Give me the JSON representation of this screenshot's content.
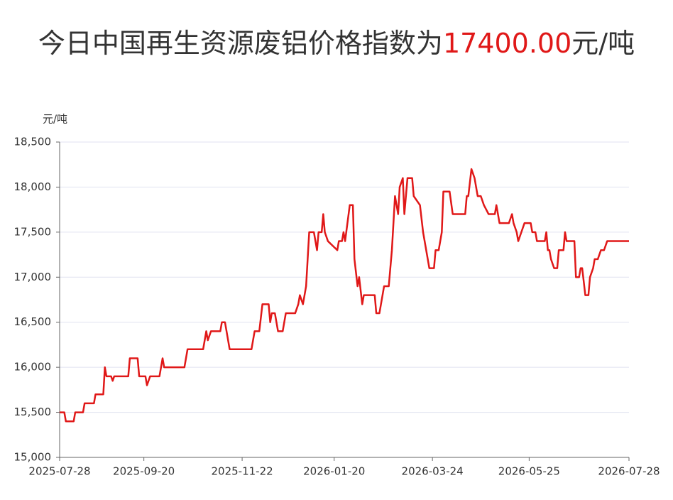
{
  "chart_data": {
    "type": "line",
    "title": {
      "prefix": "今日中国再生资源废铝价格指数为",
      "value": "17400.00",
      "suffix": "元/吨"
    },
    "y_axis_label": "元/吨",
    "color": "#e01818",
    "grid": true,
    "xlim": [
      "2025-07-28",
      "2026-07-28"
    ],
    "xticks": [
      "2025-07-28",
      "2025-09-20",
      "2025-11-22",
      "2026-01-20",
      "2026-03-24",
      "2026-05-25",
      "2026-07-28"
    ],
    "ylim": [
      15000,
      18500
    ],
    "yticks": [
      {
        "value": 15000,
        "label": "15,000"
      },
      {
        "value": 15500,
        "label": "15,500"
      },
      {
        "value": 16000,
        "label": "16,000"
      },
      {
        "value": 16500,
        "label": "16,500"
      },
      {
        "value": 17000,
        "label": "17,000"
      },
      {
        "value": 17500,
        "label": "17,500"
      },
      {
        "value": 18000,
        "label": "18,000"
      },
      {
        "value": 18500,
        "label": "18,500"
      }
    ],
    "x": [
      "2025-07-28",
      "2025-07-31",
      "2025-08-01",
      "2025-08-06",
      "2025-08-07",
      "2025-08-12",
      "2025-08-13",
      "2025-08-19",
      "2025-08-20",
      "2025-08-25",
      "2025-08-26",
      "2025-08-27",
      "2025-08-30",
      "2025-08-31",
      "2025-09-01",
      "2025-09-10",
      "2025-09-11",
      "2025-09-16",
      "2025-09-17",
      "2025-09-21",
      "2025-09-22",
      "2025-09-24",
      "2025-09-30",
      "2025-10-02",
      "2025-10-03",
      "2025-10-16",
      "2025-10-18",
      "2025-10-28",
      "2025-10-30",
      "2025-10-31",
      "2025-11-02",
      "2025-11-08",
      "2025-11-09",
      "2025-11-11",
      "2025-11-14",
      "2025-11-28",
      "2025-11-30",
      "2025-12-03",
      "2025-12-05",
      "2025-12-09",
      "2025-12-10",
      "2025-12-11",
      "2025-12-13",
      "2025-12-15",
      "2025-12-18",
      "2025-12-19",
      "2025-12-20",
      "2025-12-26",
      "2025-12-28",
      "2025-12-29",
      "2025-12-31",
      "2026-01-02",
      "2026-01-04",
      "2026-01-07",
      "2026-01-09",
      "2026-01-10",
      "2026-01-12",
      "2026-01-13",
      "2026-01-14",
      "2026-01-16",
      "2026-01-22",
      "2026-01-23",
      "2026-01-25",
      "2026-01-26",
      "2026-01-27",
      "2026-01-30",
      "2026-02-01",
      "2026-02-02",
      "2026-02-04",
      "2026-02-05",
      "2026-02-07",
      "2026-02-08",
      "2026-02-15",
      "2026-02-16",
      "2026-02-18",
      "2026-02-21",
      "2026-02-24",
      "2026-02-26",
      "2026-02-28",
      "2026-03-02",
      "2026-03-03",
      "2026-03-05",
      "2026-03-06",
      "2026-03-08",
      "2026-03-11",
      "2026-03-12",
      "2026-03-16",
      "2026-03-18",
      "2026-03-20",
      "2026-03-22",
      "2026-03-25",
      "2026-03-26",
      "2026-03-28",
      "2026-03-30",
      "2026-03-31",
      "2026-04-04",
      "2026-04-06",
      "2026-04-14",
      "2026-04-15",
      "2026-04-16",
      "2026-04-18",
      "2026-04-20",
      "2026-04-22",
      "2026-04-24",
      "2026-04-26",
      "2026-04-29",
      "2026-05-03",
      "2026-05-04",
      "2026-05-06",
      "2026-05-12",
      "2026-05-14",
      "2026-05-15",
      "2026-05-17",
      "2026-05-18",
      "2026-05-20",
      "2026-05-22",
      "2026-05-26",
      "2026-05-27",
      "2026-05-29",
      "2026-05-30",
      "2026-06-04",
      "2026-06-05",
      "2026-06-06",
      "2026-06-07",
      "2026-06-08",
      "2026-06-10",
      "2026-06-12",
      "2026-06-13",
      "2026-06-16",
      "2026-06-17",
      "2026-06-18",
      "2026-06-23",
      "2026-06-24",
      "2026-06-26",
      "2026-06-27",
      "2026-06-28",
      "2026-06-30",
      "2026-07-02",
      "2026-07-03",
      "2026-07-05",
      "2026-07-06",
      "2026-07-08",
      "2026-07-10",
      "2026-07-12",
      "2026-07-14",
      "2026-07-28"
    ],
    "values": [
      15500,
      15500,
      15400,
      15400,
      15500,
      15500,
      15600,
      15600,
      15700,
      15700,
      16000,
      15900,
      15900,
      15850,
      15900,
      15900,
      16100,
      16100,
      15900,
      15900,
      15800,
      15900,
      15900,
      16100,
      16000,
      16000,
      16200,
      16200,
      16400,
      16300,
      16400,
      16400,
      16500,
      16500,
      16200,
      16200,
      16400,
      16400,
      16700,
      16700,
      16500,
      16600,
      16600,
      16400,
      16400,
      16500,
      16600,
      16600,
      16700,
      16800,
      16700,
      16900,
      17500,
      17500,
      17300,
      17500,
      17500,
      17700,
      17500,
      17400,
      17300,
      17400,
      17400,
      17500,
      17400,
      17800,
      17800,
      17200,
      16900,
      17000,
      16700,
      16800,
      16800,
      16600,
      16600,
      16900,
      16900,
      17300,
      17900,
      17700,
      18000,
      18100,
      17700,
      18100,
      18100,
      17900,
      17800,
      17500,
      17300,
      17100,
      17100,
      17300,
      17300,
      17500,
      17950,
      17950,
      17700,
      17700,
      17900,
      17900,
      18200,
      18100,
      17900,
      17900,
      17800,
      17700,
      17700,
      17800,
      17600,
      17600,
      17700,
      17600,
      17500,
      17400,
      17500,
      17600,
      17600,
      17500,
      17500,
      17400,
      17400,
      17500,
      17300,
      17300,
      17200,
      17100,
      17100,
      17300,
      17300,
      17500,
      17400,
      17400,
      17000,
      17000,
      17100,
      17100,
      16800,
      16800,
      17000,
      17100,
      17200,
      17200,
      17300,
      17300,
      17400,
      17400
    ]
  }
}
